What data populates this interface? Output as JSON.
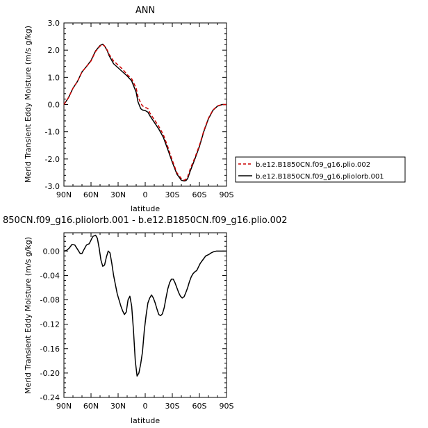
{
  "chart_data": [
    {
      "type": "line",
      "title": "ANN",
      "xlabel": "latitude",
      "ylabel": "Merid Transient Eddy Moisture (m/s g/kg)",
      "xlim": [
        90,
        -90
      ],
      "ylim": [
        -3.0,
        3.0
      ],
      "x_ticks": [
        90,
        60,
        30,
        0,
        -30,
        -60,
        -90
      ],
      "x_tick_labels": [
        "90N",
        "60N",
        "30N",
        "0",
        "30S",
        "60S",
        "90S"
      ],
      "y_ticks": [
        -3.0,
        -2.0,
        -1.0,
        0.0,
        1.0,
        2.0,
        3.0
      ],
      "y_tick_labels": [
        "-3.0",
        "-2.0",
        "-1.0",
        "0.0",
        "1.0",
        "2.0",
        "3.0"
      ],
      "legend_position": "right",
      "series": [
        {
          "name": "b.e12.B1850CN.f09_g16.plio.002",
          "color": "#cc0000",
          "dash": "dashed",
          "x": [
            90,
            85,
            80,
            75,
            70,
            65,
            60,
            55,
            50,
            47,
            45,
            42,
            40,
            35,
            30,
            25,
            20,
            15,
            10,
            8,
            5,
            3,
            0,
            -3,
            -5,
            -10,
            -15,
            -20,
            -25,
            -30,
            -35,
            -40,
            -43,
            -45,
            -47,
            -50,
            -55,
            -60,
            -65,
            -70,
            -75,
            -80,
            -85,
            -90
          ],
          "y": [
            0.0,
            0.25,
            0.6,
            0.85,
            1.2,
            1.4,
            1.6,
            1.95,
            2.15,
            2.2,
            2.15,
            2.0,
            1.85,
            1.6,
            1.45,
            1.3,
            1.1,
            0.95,
            0.6,
            0.3,
            0.05,
            -0.05,
            -0.1,
            -0.15,
            -0.3,
            -0.55,
            -0.8,
            -1.1,
            -1.55,
            -2.05,
            -2.5,
            -2.72,
            -2.78,
            -2.75,
            -2.65,
            -2.35,
            -1.95,
            -1.5,
            -0.95,
            -0.5,
            -0.2,
            -0.05,
            0.0,
            0.0
          ]
        },
        {
          "name": "b.e12.B1850CN.f09_g16.pliolorb.001",
          "color": "#000000",
          "dash": "solid",
          "x": [
            90,
            85,
            80,
            75,
            70,
            65,
            60,
            55,
            50,
            47,
            45,
            42,
            40,
            35,
            30,
            25,
            20,
            15,
            10,
            8,
            5,
            3,
            0,
            -3,
            -5,
            -10,
            -15,
            -20,
            -25,
            -30,
            -35,
            -40,
            -43,
            -45,
            -47,
            -50,
            -55,
            -60,
            -65,
            -70,
            -75,
            -80,
            -85,
            -90
          ],
          "y": [
            0.0,
            0.25,
            0.6,
            0.85,
            1.2,
            1.4,
            1.62,
            1.97,
            2.17,
            2.22,
            2.15,
            1.98,
            1.8,
            1.5,
            1.35,
            1.2,
            1.05,
            0.87,
            0.45,
            0.1,
            -0.15,
            -0.2,
            -0.22,
            -0.28,
            -0.4,
            -0.65,
            -0.9,
            -1.2,
            -1.65,
            -2.12,
            -2.55,
            -2.78,
            -2.81,
            -2.8,
            -2.72,
            -2.43,
            -2.0,
            -1.54,
            -0.98,
            -0.52,
            -0.21,
            -0.06,
            0.0,
            0.0
          ]
        }
      ]
    },
    {
      "type": "line",
      "title": "850CN.f09_g16.pliolorb.001 - b.e12.B1850CN.f09_g16.plio.002",
      "xlabel": "latitude",
      "ylabel": "Merid Transient Eddy Moisture (m/s g/kg)",
      "xlim": [
        90,
        -90
      ],
      "ylim": [
        -0.24,
        0.03
      ],
      "x_ticks": [
        90,
        60,
        30,
        0,
        -30,
        -60,
        -90
      ],
      "x_tick_labels": [
        "90N",
        "60N",
        "30N",
        "0",
        "30S",
        "60S",
        "90S"
      ],
      "y_ticks": [
        -0.24,
        -0.2,
        -0.16,
        -0.12,
        -0.08,
        -0.04,
        0.0
      ],
      "y_tick_labels": [
        "-0.24",
        "-0.20",
        "-0.16",
        "-0.12",
        "-0.08",
        "-0.04",
        "0.00"
      ],
      "series": [
        {
          "color": "#000000",
          "dash": "solid",
          "x": [
            90,
            87,
            84,
            81,
            78,
            75,
            72,
            70,
            68,
            65,
            62,
            60,
            58,
            55,
            53,
            51,
            49,
            47,
            45,
            43,
            41,
            39,
            37,
            35,
            33,
            31,
            29,
            27,
            25,
            23,
            21,
            19,
            17,
            15,
            13,
            11,
            9,
            7,
            5,
            3,
            1,
            -1,
            -3,
            -5,
            -7,
            -9,
            -11,
            -13,
            -15,
            -17,
            -19,
            -21,
            -23,
            -25,
            -27,
            -29,
            -31,
            -33,
            -35,
            -37,
            -39,
            -41,
            -43,
            -45,
            -47,
            -49,
            -51,
            -53,
            -55,
            -57,
            -59,
            -61,
            -63,
            -65,
            -67,
            -70,
            -73,
            -76,
            -79,
            -82,
            -85,
            -87,
            -90
          ],
          "y": [
            0.0,
            0.001,
            0.005,
            0.011,
            0.01,
            0.003,
            -0.004,
            -0.004,
            0.002,
            0.01,
            0.012,
            0.018,
            0.024,
            0.026,
            0.021,
            0.005,
            -0.015,
            -0.025,
            -0.023,
            -0.01,
            0.0,
            -0.003,
            -0.02,
            -0.04,
            -0.055,
            -0.07,
            -0.08,
            -0.09,
            -0.098,
            -0.104,
            -0.1,
            -0.08,
            -0.074,
            -0.09,
            -0.13,
            -0.18,
            -0.205,
            -0.2,
            -0.185,
            -0.165,
            -0.13,
            -0.105,
            -0.085,
            -0.077,
            -0.072,
            -0.077,
            -0.085,
            -0.095,
            -0.104,
            -0.106,
            -0.103,
            -0.093,
            -0.077,
            -0.062,
            -0.052,
            -0.046,
            -0.046,
            -0.052,
            -0.06,
            -0.068,
            -0.074,
            -0.077,
            -0.075,
            -0.068,
            -0.06,
            -0.05,
            -0.042,
            -0.037,
            -0.034,
            -0.032,
            -0.026,
            -0.02,
            -0.016,
            -0.012,
            -0.008,
            -0.006,
            -0.003,
            -0.001,
            0.0,
            0.0,
            0.0,
            0.0,
            0.0
          ]
        }
      ]
    }
  ]
}
